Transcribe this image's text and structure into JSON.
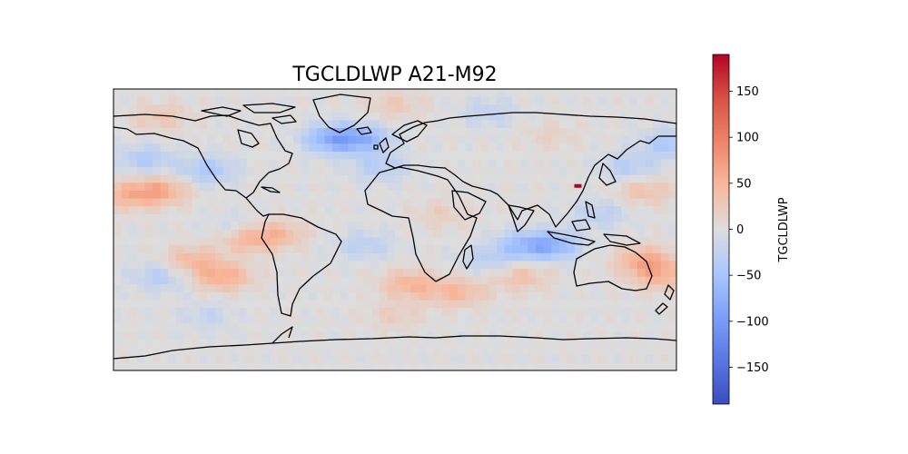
{
  "chart_data": {
    "type": "heatmap",
    "title": "TGCLDLWP A21-M92",
    "projection": "plate-carree",
    "extent": {
      "lon": [
        -180,
        180
      ],
      "lat": [
        -90,
        90
      ]
    },
    "colormap": "coolwarm",
    "colorbar": {
      "label": "TGCLDLWP",
      "range": [
        -190,
        190
      ],
      "ticks": [
        -150,
        -100,
        -50,
        0,
        50,
        100,
        150
      ],
      "tick_labels": [
        "−150",
        "−100",
        "−50",
        "0",
        "50",
        "100",
        "150"
      ]
    },
    "anomalies": [
      {
        "lon": -150,
        "lat": 25,
        "value": 55
      },
      {
        "lon": -170,
        "lat": 22,
        "value": 45
      },
      {
        "lon": -120,
        "lat": 38,
        "value": -45
      },
      {
        "lon": -160,
        "lat": 45,
        "value": -40
      },
      {
        "lon": -40,
        "lat": 58,
        "value": -75
      },
      {
        "lon": -20,
        "lat": 58,
        "value": -60
      },
      {
        "lon": -10,
        "lat": 40,
        "value": -35
      },
      {
        "lon": -100,
        "lat": 0,
        "value": -30
      },
      {
        "lon": -95,
        "lat": -5,
        "value": 55
      },
      {
        "lon": -75,
        "lat": -3,
        "value": 40
      },
      {
        "lon": -20,
        "lat": -10,
        "value": -30
      },
      {
        "lon": -130,
        "lat": -20,
        "value": 45
      },
      {
        "lon": -110,
        "lat": -30,
        "value": 55
      },
      {
        "lon": -150,
        "lat": -30,
        "value": -35
      },
      {
        "lon": 10,
        "lat": -35,
        "value": 50
      },
      {
        "lon": 40,
        "lat": -40,
        "value": 45
      },
      {
        "lon": 60,
        "lat": -20,
        "value": -30
      },
      {
        "lon": 80,
        "lat": -30,
        "value": 35
      },
      {
        "lon": 100,
        "lat": -10,
        "value": -70
      },
      {
        "lon": 80,
        "lat": -10,
        "value": -45
      },
      {
        "lon": 160,
        "lat": -20,
        "value": 60
      },
      {
        "lon": 170,
        "lat": -30,
        "value": 45
      },
      {
        "lon": 160,
        "lat": 25,
        "value": 35
      },
      {
        "lon": 150,
        "lat": 40,
        "value": -35
      },
      {
        "lon": 175,
        "lat": 55,
        "value": -45
      },
      {
        "lon": 130,
        "lat": 10,
        "value": -30
      },
      {
        "lon": -150,
        "lat": 72,
        "value": 30
      },
      {
        "lon": 60,
        "lat": 75,
        "value": -25
      },
      {
        "lon": 0,
        "lat": 80,
        "value": 25
      },
      {
        "lon": -120,
        "lat": -55,
        "value": -20
      },
      {
        "lon": 0,
        "lat": -55,
        "value": 20
      },
      {
        "lon": 30,
        "lat": 10,
        "value": 20
      },
      {
        "lon": 100,
        "lat": 60,
        "value": 15
      },
      {
        "lon": 117,
        "lat": 28,
        "value": 190
      }
    ]
  }
}
